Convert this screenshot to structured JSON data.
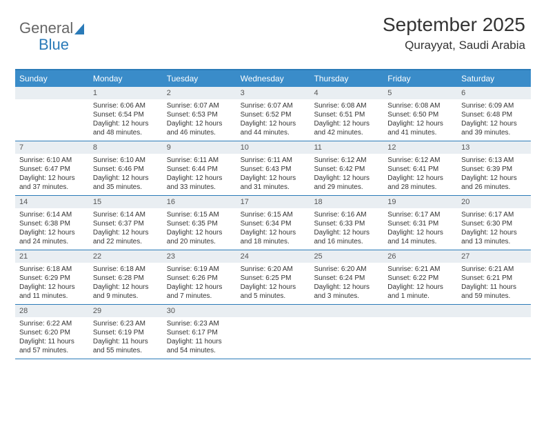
{
  "logo": {
    "text_general": "General",
    "text_blue": "Blue"
  },
  "header": {
    "month_title": "September 2025",
    "location": "Qurayyat, Saudi Arabia"
  },
  "colors": {
    "header_bg": "#3a8cc9",
    "border": "#2a7ab8",
    "daynum_bg": "#e9eef2",
    "text": "#333333"
  },
  "day_names": [
    "Sunday",
    "Monday",
    "Tuesday",
    "Wednesday",
    "Thursday",
    "Friday",
    "Saturday"
  ],
  "weeks": [
    [
      {
        "day": "",
        "sunrise": "",
        "sunset": "",
        "daylight": ""
      },
      {
        "day": "1",
        "sunrise": "Sunrise: 6:06 AM",
        "sunset": "Sunset: 6:54 PM",
        "daylight": "Daylight: 12 hours and 48 minutes."
      },
      {
        "day": "2",
        "sunrise": "Sunrise: 6:07 AM",
        "sunset": "Sunset: 6:53 PM",
        "daylight": "Daylight: 12 hours and 46 minutes."
      },
      {
        "day": "3",
        "sunrise": "Sunrise: 6:07 AM",
        "sunset": "Sunset: 6:52 PM",
        "daylight": "Daylight: 12 hours and 44 minutes."
      },
      {
        "day": "4",
        "sunrise": "Sunrise: 6:08 AM",
        "sunset": "Sunset: 6:51 PM",
        "daylight": "Daylight: 12 hours and 42 minutes."
      },
      {
        "day": "5",
        "sunrise": "Sunrise: 6:08 AM",
        "sunset": "Sunset: 6:50 PM",
        "daylight": "Daylight: 12 hours and 41 minutes."
      },
      {
        "day": "6",
        "sunrise": "Sunrise: 6:09 AM",
        "sunset": "Sunset: 6:48 PM",
        "daylight": "Daylight: 12 hours and 39 minutes."
      }
    ],
    [
      {
        "day": "7",
        "sunrise": "Sunrise: 6:10 AM",
        "sunset": "Sunset: 6:47 PM",
        "daylight": "Daylight: 12 hours and 37 minutes."
      },
      {
        "day": "8",
        "sunrise": "Sunrise: 6:10 AM",
        "sunset": "Sunset: 6:46 PM",
        "daylight": "Daylight: 12 hours and 35 minutes."
      },
      {
        "day": "9",
        "sunrise": "Sunrise: 6:11 AM",
        "sunset": "Sunset: 6:44 PM",
        "daylight": "Daylight: 12 hours and 33 minutes."
      },
      {
        "day": "10",
        "sunrise": "Sunrise: 6:11 AM",
        "sunset": "Sunset: 6:43 PM",
        "daylight": "Daylight: 12 hours and 31 minutes."
      },
      {
        "day": "11",
        "sunrise": "Sunrise: 6:12 AM",
        "sunset": "Sunset: 6:42 PM",
        "daylight": "Daylight: 12 hours and 29 minutes."
      },
      {
        "day": "12",
        "sunrise": "Sunrise: 6:12 AM",
        "sunset": "Sunset: 6:41 PM",
        "daylight": "Daylight: 12 hours and 28 minutes."
      },
      {
        "day": "13",
        "sunrise": "Sunrise: 6:13 AM",
        "sunset": "Sunset: 6:39 PM",
        "daylight": "Daylight: 12 hours and 26 minutes."
      }
    ],
    [
      {
        "day": "14",
        "sunrise": "Sunrise: 6:14 AM",
        "sunset": "Sunset: 6:38 PM",
        "daylight": "Daylight: 12 hours and 24 minutes."
      },
      {
        "day": "15",
        "sunrise": "Sunrise: 6:14 AM",
        "sunset": "Sunset: 6:37 PM",
        "daylight": "Daylight: 12 hours and 22 minutes."
      },
      {
        "day": "16",
        "sunrise": "Sunrise: 6:15 AM",
        "sunset": "Sunset: 6:35 PM",
        "daylight": "Daylight: 12 hours and 20 minutes."
      },
      {
        "day": "17",
        "sunrise": "Sunrise: 6:15 AM",
        "sunset": "Sunset: 6:34 PM",
        "daylight": "Daylight: 12 hours and 18 minutes."
      },
      {
        "day": "18",
        "sunrise": "Sunrise: 6:16 AM",
        "sunset": "Sunset: 6:33 PM",
        "daylight": "Daylight: 12 hours and 16 minutes."
      },
      {
        "day": "19",
        "sunrise": "Sunrise: 6:17 AM",
        "sunset": "Sunset: 6:31 PM",
        "daylight": "Daylight: 12 hours and 14 minutes."
      },
      {
        "day": "20",
        "sunrise": "Sunrise: 6:17 AM",
        "sunset": "Sunset: 6:30 PM",
        "daylight": "Daylight: 12 hours and 13 minutes."
      }
    ],
    [
      {
        "day": "21",
        "sunrise": "Sunrise: 6:18 AM",
        "sunset": "Sunset: 6:29 PM",
        "daylight": "Daylight: 12 hours and 11 minutes."
      },
      {
        "day": "22",
        "sunrise": "Sunrise: 6:18 AM",
        "sunset": "Sunset: 6:28 PM",
        "daylight": "Daylight: 12 hours and 9 minutes."
      },
      {
        "day": "23",
        "sunrise": "Sunrise: 6:19 AM",
        "sunset": "Sunset: 6:26 PM",
        "daylight": "Daylight: 12 hours and 7 minutes."
      },
      {
        "day": "24",
        "sunrise": "Sunrise: 6:20 AM",
        "sunset": "Sunset: 6:25 PM",
        "daylight": "Daylight: 12 hours and 5 minutes."
      },
      {
        "day": "25",
        "sunrise": "Sunrise: 6:20 AM",
        "sunset": "Sunset: 6:24 PM",
        "daylight": "Daylight: 12 hours and 3 minutes."
      },
      {
        "day": "26",
        "sunrise": "Sunrise: 6:21 AM",
        "sunset": "Sunset: 6:22 PM",
        "daylight": "Daylight: 12 hours and 1 minute."
      },
      {
        "day": "27",
        "sunrise": "Sunrise: 6:21 AM",
        "sunset": "Sunset: 6:21 PM",
        "daylight": "Daylight: 11 hours and 59 minutes."
      }
    ],
    [
      {
        "day": "28",
        "sunrise": "Sunrise: 6:22 AM",
        "sunset": "Sunset: 6:20 PM",
        "daylight": "Daylight: 11 hours and 57 minutes."
      },
      {
        "day": "29",
        "sunrise": "Sunrise: 6:23 AM",
        "sunset": "Sunset: 6:19 PM",
        "daylight": "Daylight: 11 hours and 55 minutes."
      },
      {
        "day": "30",
        "sunrise": "Sunrise: 6:23 AM",
        "sunset": "Sunset: 6:17 PM",
        "daylight": "Daylight: 11 hours and 54 minutes."
      },
      {
        "day": "",
        "sunrise": "",
        "sunset": "",
        "daylight": ""
      },
      {
        "day": "",
        "sunrise": "",
        "sunset": "",
        "daylight": ""
      },
      {
        "day": "",
        "sunrise": "",
        "sunset": "",
        "daylight": ""
      },
      {
        "day": "",
        "sunrise": "",
        "sunset": "",
        "daylight": ""
      }
    ]
  ]
}
